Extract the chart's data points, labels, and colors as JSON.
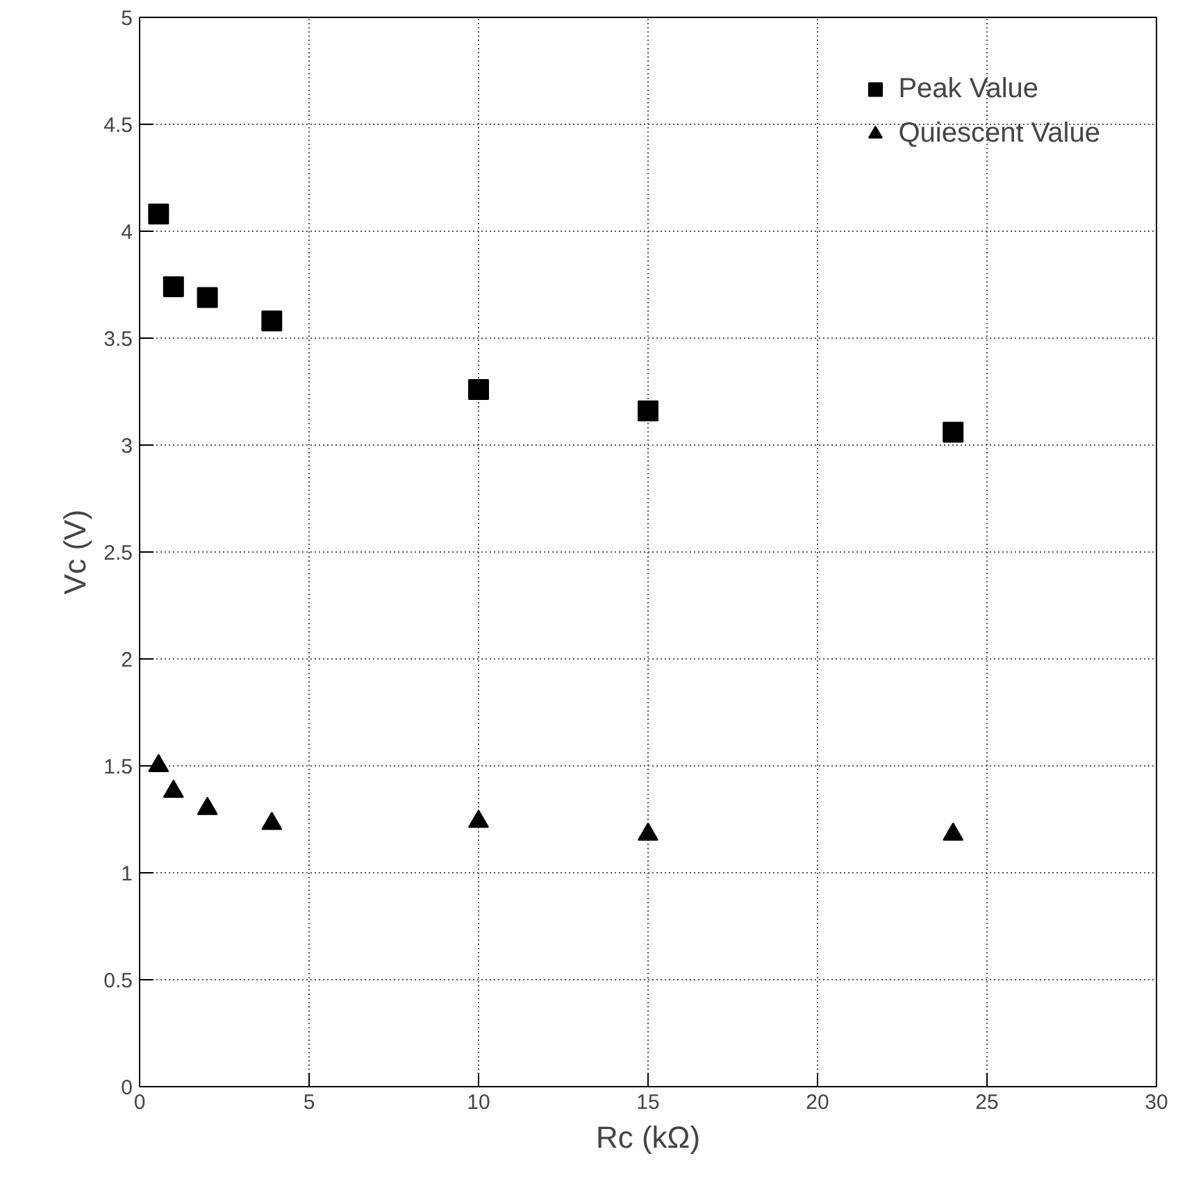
{
  "chart_data": {
    "type": "scatter",
    "xlabel": "Rc (kΩ)",
    "ylabel": "Vc (V)",
    "x": [
      0.56,
      1,
      2,
      3.9,
      10,
      15,
      24
    ],
    "series": [
      {
        "name": "Peak Value",
        "color": "#000000",
        "marker": "square",
        "values": [
          4.08,
          3.74,
          3.69,
          3.58,
          3.26,
          3.16,
          3.06
        ]
      },
      {
        "name": "Quiescent Value",
        "color": "#000000",
        "marker": "triangle",
        "values": [
          1.5,
          1.38,
          1.3,
          1.23,
          1.24,
          1.18,
          1.18
        ]
      }
    ],
    "xlim": [
      0,
      30
    ],
    "xticks": [
      0,
      5,
      10,
      15,
      20,
      25,
      30
    ],
    "ylim": [
      0,
      5
    ],
    "yticks": [
      0,
      0.5,
      1,
      1.5,
      2,
      2.5,
      3,
      3.5,
      4,
      4.5,
      5
    ],
    "grid": true,
    "legend": "top right"
  }
}
